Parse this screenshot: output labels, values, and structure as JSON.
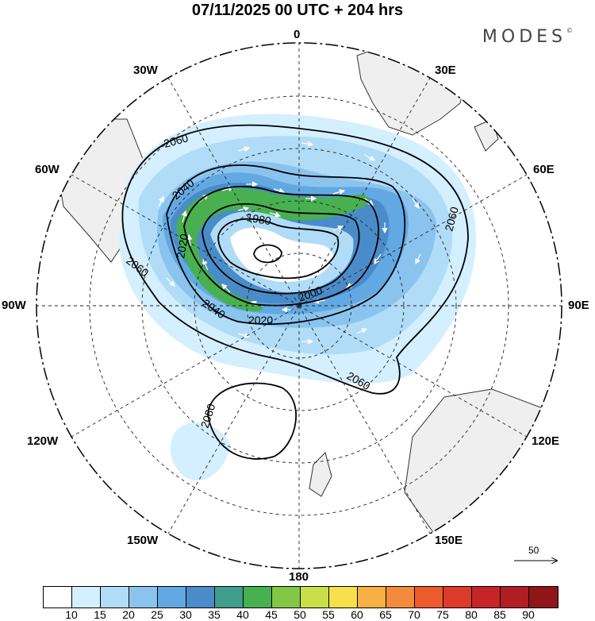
{
  "title": "07/11/2025  00 UTC  + 204 hrs",
  "brand": "MODES",
  "brand_mark": "©",
  "meridians": {
    "m0": "0",
    "m30e": "30E",
    "m60e": "60E",
    "m90e": "90E",
    "m120e": "120E",
    "m150e": "150E",
    "m180": "180",
    "m150w": "150W",
    "m120w": "120W",
    "m90w": "90W",
    "m60w": "60W",
    "m30w": "30W"
  },
  "contours": {
    "c2060a": "2060",
    "c2060b": "2060",
    "c2060c": "2060",
    "c2060d": "2060",
    "c2040a": "2040",
    "c2040b": "2040",
    "c1980": "1980",
    "c2020a": "2020",
    "c2020b": "2020",
    "c2000": "2000",
    "c2080": "2080"
  },
  "vector_legend": "50",
  "colorbar": {
    "colors": [
      "#ffffff",
      "#d4efff",
      "#b0dcf7",
      "#8ac4ee",
      "#62a9e3",
      "#4a8cc9",
      "#3f9e8c",
      "#48b04f",
      "#82c846",
      "#c8df4a",
      "#f6e04b",
      "#f7b044",
      "#f48a3c",
      "#ec5b2e",
      "#dc3a2b",
      "#c72428",
      "#b01d22",
      "#8f1519"
    ],
    "labels": [
      "10",
      "15",
      "20",
      "25",
      "30",
      "35",
      "40",
      "45",
      "50",
      "55",
      "60",
      "65",
      "70",
      "75",
      "80",
      "85",
      "90"
    ]
  }
}
